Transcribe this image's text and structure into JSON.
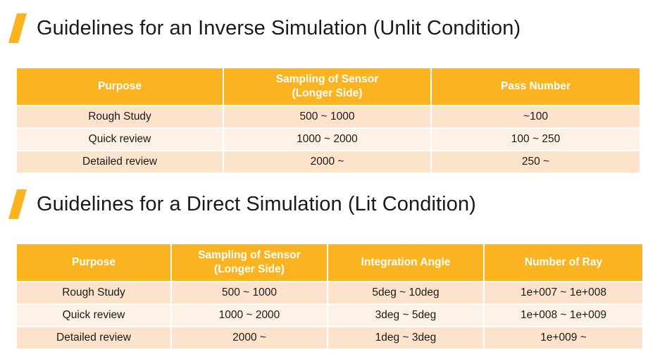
{
  "section1": {
    "title": "Guidelines for an Inverse Simulation (Unlit Condition)",
    "headers": {
      "purpose": "Purpose",
      "sampling_line1": "Sampling of Sensor",
      "sampling_line2": "(Longer Side)",
      "pass_number": "Pass Number"
    },
    "rows": [
      {
        "purpose": "Rough Study",
        "sampling": "500 ~ 1000",
        "pass_number": "~100"
      },
      {
        "purpose": "Quick review",
        "sampling": "1000 ~ 2000",
        "pass_number": "100 ~ 250"
      },
      {
        "purpose": "Detailed review",
        "sampling": "2000 ~",
        "pass_number": "250 ~"
      }
    ]
  },
  "section2": {
    "title": "Guidelines for a Direct Simulation (Lit Condition)",
    "headers": {
      "purpose": "Purpose",
      "sampling_line1": "Sampling of Sensor",
      "sampling_line2": "(Longer Side)",
      "integration_angle": "Integration Angle",
      "number_of_ray": "Number of Ray"
    },
    "rows": [
      {
        "purpose": "Rough Study",
        "sampling": "500 ~ 1000",
        "integration_angle": "5deg ~ 10deg",
        "number_of_ray": "1e+007 ~ 1e+008"
      },
      {
        "purpose": "Quick review",
        "sampling": "1000 ~ 2000",
        "integration_angle": "3deg ~ 5deg",
        "number_of_ray": "1e+008 ~ 1e+009"
      },
      {
        "purpose": "Detailed review",
        "sampling": "2000 ~",
        "integration_angle": "1deg ~ 3deg",
        "number_of_ray": "1e+009 ~"
      }
    ]
  },
  "colors": {
    "accent": "#fbb420",
    "row_dark": "#fde3cb",
    "row_light": "#fef1e6",
    "text": "#1a1a1a"
  },
  "icons": {
    "title_marker": "slash-accent-icon"
  }
}
